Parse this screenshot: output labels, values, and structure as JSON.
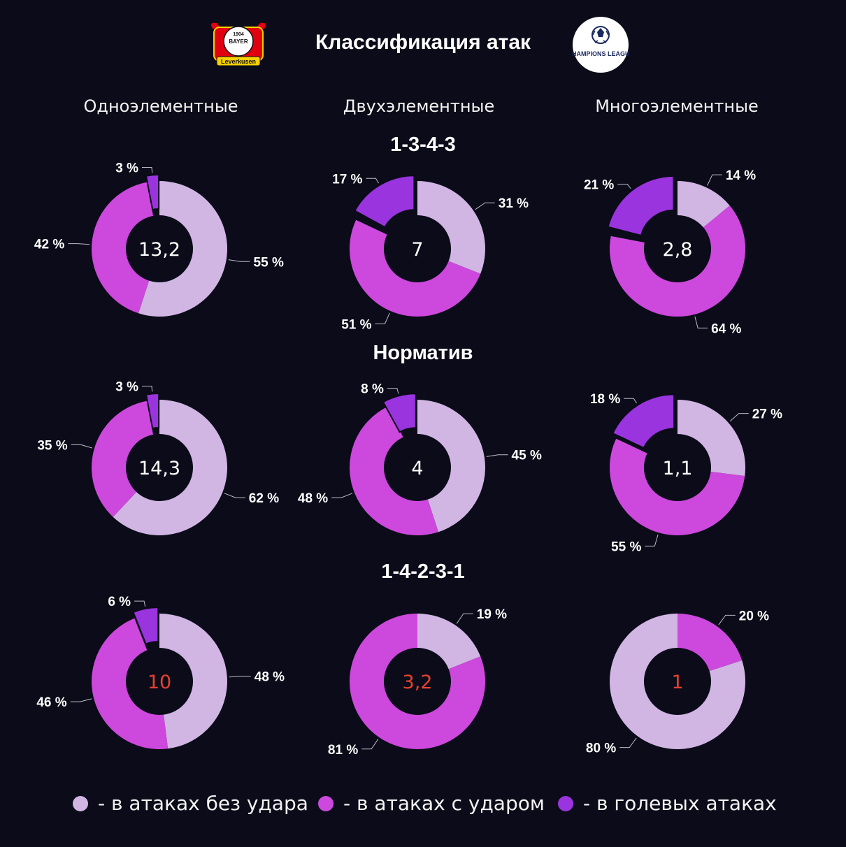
{
  "header": {
    "title": "Классификация атак",
    "logo_left_text": "Leverkusen",
    "logo_right_text": "CHAMPIONS LEAGUE"
  },
  "columns": [
    "Одноэлементные",
    "Двухэлементные",
    "Многоэлементные"
  ],
  "sections": [
    "1-3-4-3",
    "Норматив",
    "1-4-2-3-1"
  ],
  "colors": {
    "no_shot": "#d1b6e4",
    "shot": "#cd48dd",
    "goal": "#9a34de",
    "highlight": "#e8412e",
    "background": "#0b0b19"
  },
  "legend": [
    {
      "label": "- в атаках без удара",
      "color": "#d1b6e4"
    },
    {
      "label": "- в атаках с ударом",
      "color": "#cd48dd"
    },
    {
      "label": "- в голевых атаках",
      "color": "#9a34de"
    }
  ],
  "chart_data": [
    {
      "type": "pie",
      "row": "1-3-4-3",
      "column": "Одноэлементные",
      "center": "13,2",
      "highlight": false,
      "slices": [
        {
          "category": "no_shot",
          "value": 55,
          "label": "55 %"
        },
        {
          "category": "shot",
          "value": 42,
          "label": "42 %"
        },
        {
          "category": "goal",
          "value": 3,
          "label": "3 %"
        }
      ]
    },
    {
      "type": "pie",
      "row": "1-3-4-3",
      "column": "Двухэлементные",
      "center": "7",
      "highlight": false,
      "slices": [
        {
          "category": "no_shot",
          "value": 31,
          "label": "31 %"
        },
        {
          "category": "shot",
          "value": 51,
          "label": "51 %"
        },
        {
          "category": "goal",
          "value": 17,
          "label": "17 %"
        }
      ]
    },
    {
      "type": "pie",
      "row": "1-3-4-3",
      "column": "Многоэлементные",
      "center": "2,8",
      "highlight": false,
      "slices": [
        {
          "category": "no_shot",
          "value": 14,
          "label": "14 %"
        },
        {
          "category": "shot",
          "value": 64,
          "label": "64 %"
        },
        {
          "category": "goal",
          "value": 21,
          "label": "21 %"
        }
      ]
    },
    {
      "type": "pie",
      "row": "Норматив",
      "column": "Одноэлементные",
      "center": "14,3",
      "highlight": false,
      "slices": [
        {
          "category": "no_shot",
          "value": 62,
          "label": "62 %"
        },
        {
          "category": "shot",
          "value": 35,
          "label": "35 %"
        },
        {
          "category": "goal",
          "value": 3,
          "label": "3 %"
        }
      ]
    },
    {
      "type": "pie",
      "row": "Норматив",
      "column": "Двухэлементные",
      "center": "4",
      "highlight": false,
      "slices": [
        {
          "category": "no_shot",
          "value": 45,
          "label": "45 %"
        },
        {
          "category": "shot",
          "value": 48,
          "label": "48 %"
        },
        {
          "category": "goal",
          "value": 8,
          "label": "8 %"
        }
      ]
    },
    {
      "type": "pie",
      "row": "Норматив",
      "column": "Многоэлементные",
      "center": "1,1",
      "highlight": false,
      "slices": [
        {
          "category": "no_shot",
          "value": 27,
          "label": "27 %"
        },
        {
          "category": "shot",
          "value": 55,
          "label": "55 %"
        },
        {
          "category": "goal",
          "value": 18,
          "label": "18 %"
        }
      ]
    },
    {
      "type": "pie",
      "row": "1-4-2-3-1",
      "column": "Одноэлементные",
      "center": "10",
      "highlight": true,
      "slices": [
        {
          "category": "no_shot",
          "value": 48,
          "label": "48 %"
        },
        {
          "category": "shot",
          "value": 46,
          "label": "46 %"
        },
        {
          "category": "goal",
          "value": 6,
          "label": "6 %"
        }
      ]
    },
    {
      "type": "pie",
      "row": "1-4-2-3-1",
      "column": "Двухэлементные",
      "center": "3,2",
      "highlight": true,
      "slices": [
        {
          "category": "no_shot",
          "value": 19,
          "label": "19 %"
        },
        {
          "category": "shot",
          "value": 81,
          "label": "81 %"
        }
      ]
    },
    {
      "type": "pie",
      "row": "1-4-2-3-1",
      "column": "Многоэлементные",
      "center": "1",
      "highlight": true,
      "slices": [
        {
          "category": "shot",
          "value": 20,
          "label": "20 %"
        },
        {
          "category": "no_shot",
          "value": 80,
          "label": "80 %"
        }
      ]
    }
  ]
}
